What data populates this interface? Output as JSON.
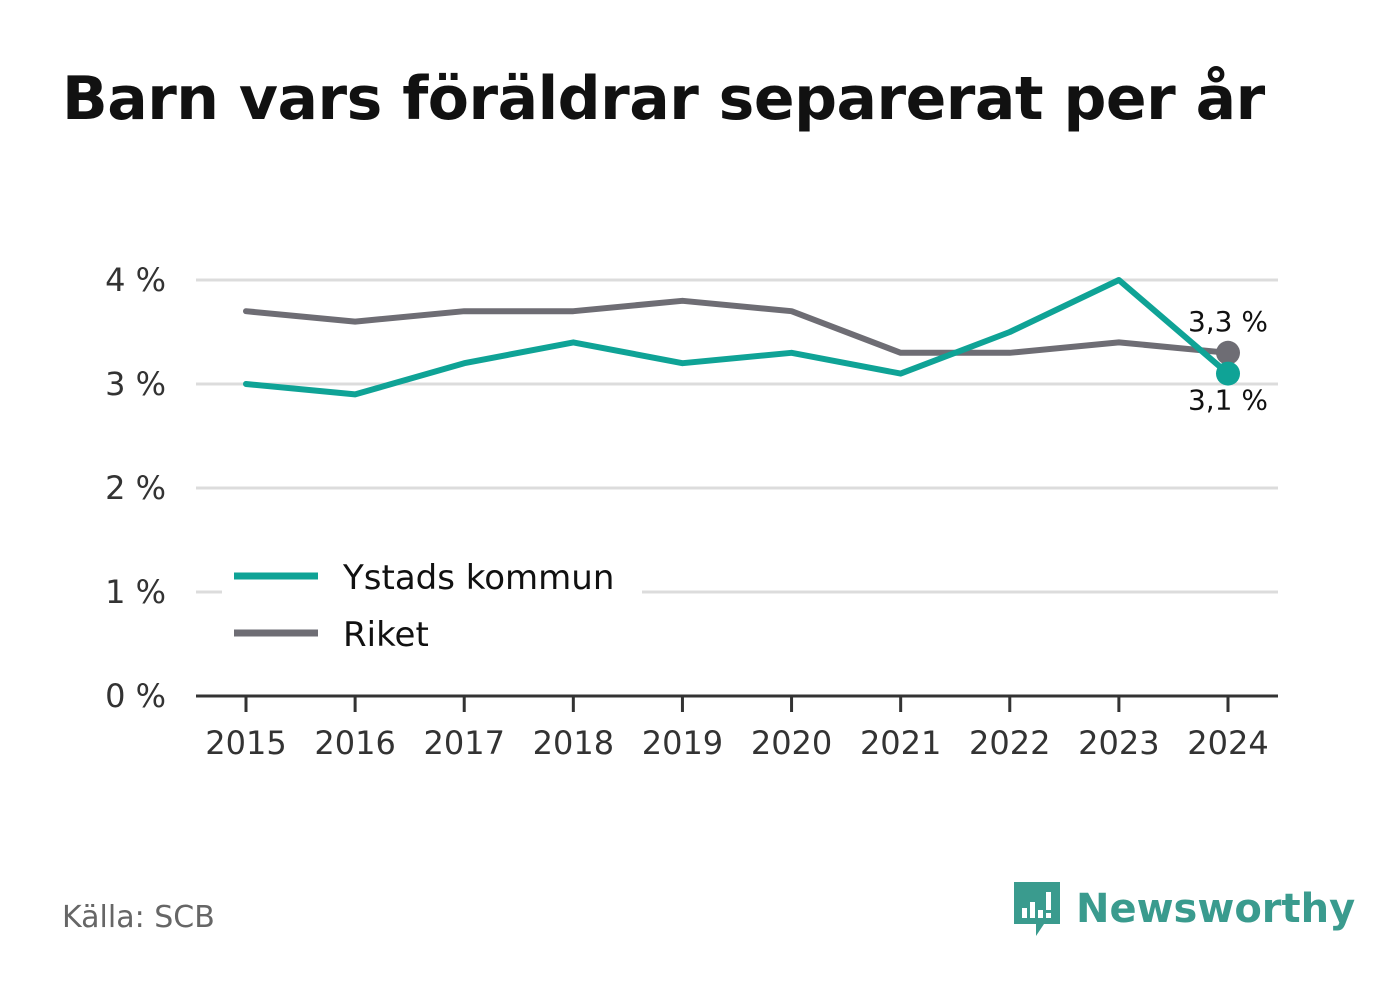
{
  "title": "Barn vars föräldrar separerat per år",
  "source": "Källa: SCB",
  "brand": "Newsworthy",
  "colors": {
    "ystad": "#0fa396",
    "riket": "#6e6d74",
    "grid": "#dcdcdc",
    "axis": "#333333"
  },
  "chart_data": {
    "type": "line",
    "x": [
      2015,
      2016,
      2017,
      2018,
      2019,
      2020,
      2021,
      2022,
      2023,
      2024
    ],
    "x_ticks": [
      "2015",
      "2016",
      "2017",
      "2018",
      "2019",
      "2020",
      "2021",
      "2022",
      "2023",
      "2024"
    ],
    "ylim": [
      0,
      4
    ],
    "y_ticks": [
      {
        "value": 0,
        "label": "0 %"
      },
      {
        "value": 1,
        "label": "1 %"
      },
      {
        "value": 2,
        "label": "2 %"
      },
      {
        "value": 3,
        "label": "3 %"
      },
      {
        "value": 4,
        "label": "4 %"
      }
    ],
    "grid": true,
    "legend_position": "bottom-left",
    "series": [
      {
        "name": "Ystads kommun",
        "values": [
          3.0,
          2.9,
          3.2,
          3.4,
          3.2,
          3.3,
          3.1,
          3.5,
          4.0,
          3.1
        ],
        "end_label": "3,1 %"
      },
      {
        "name": "Riket",
        "values": [
          3.7,
          3.6,
          3.7,
          3.7,
          3.8,
          3.7,
          3.3,
          3.3,
          3.4,
          3.3
        ],
        "end_label": "3,3 %"
      }
    ]
  }
}
